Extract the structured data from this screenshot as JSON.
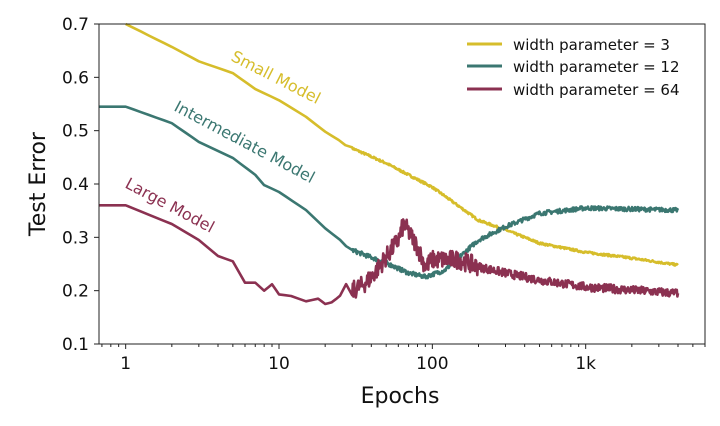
{
  "chart_data": {
    "type": "line",
    "title": "",
    "xlabel": "Epochs",
    "ylabel": "Test Error",
    "xscale": "log",
    "xlim": [
      0.67,
      6000
    ],
    "ylim": [
      0.1,
      0.7
    ],
    "xticks": [
      {
        "value": 1,
        "label": "1"
      },
      {
        "value": 10,
        "label": "10"
      },
      {
        "value": 100,
        "label": "100"
      },
      {
        "value": 1000,
        "label": "1k"
      }
    ],
    "yticks": [
      {
        "value": 0.1,
        "label": "0.1"
      },
      {
        "value": 0.2,
        "label": "0.2"
      },
      {
        "value": 0.3,
        "label": "0.3"
      },
      {
        "value": 0.4,
        "label": "0.4"
      },
      {
        "value": 0.5,
        "label": "0.5"
      },
      {
        "value": 0.6,
        "label": "0.6"
      },
      {
        "value": 0.7,
        "label": "0.7"
      }
    ],
    "grid": false,
    "legend_position": "top-right",
    "series": [
      {
        "name": "width parameter = 3",
        "annotation": "Small Model",
        "color": "#d6bd2b",
        "x": [
          1,
          2,
          3,
          5,
          7,
          10,
          15,
          20,
          30,
          50,
          100,
          200,
          300,
          500,
          1000,
          2000,
          4000
        ],
        "y": [
          0.7,
          0.657,
          0.63,
          0.608,
          0.578,
          0.557,
          0.526,
          0.498,
          0.467,
          0.439,
          0.394,
          0.332,
          0.314,
          0.289,
          0.272,
          0.261,
          0.248
        ]
      },
      {
        "name": "width parameter = 12",
        "annotation": "Intermediate Model",
        "color": "#3b7771",
        "x": [
          0.67,
          1,
          2,
          3,
          5,
          7,
          8,
          10,
          15,
          20,
          25,
          30,
          50,
          70,
          90,
          120,
          150,
          200,
          300,
          500,
          1000,
          4000
        ],
        "y": [
          0.545,
          0.545,
          0.514,
          0.479,
          0.449,
          0.417,
          0.398,
          0.385,
          0.351,
          0.317,
          0.295,
          0.276,
          0.252,
          0.233,
          0.226,
          0.238,
          0.263,
          0.295,
          0.32,
          0.345,
          0.355,
          0.351
        ]
      },
      {
        "name": "width parameter = 64",
        "annotation": "Large Model",
        "color": "#8b3151",
        "x": [
          0.67,
          1,
          2,
          3,
          4,
          5,
          6,
          7,
          8,
          9,
          10,
          12,
          15,
          18,
          20,
          22,
          25,
          30,
          35,
          40,
          50,
          60,
          65,
          80,
          90,
          100,
          150,
          200,
          300,
          500,
          1000,
          4000
        ],
        "y": [
          0.36,
          0.36,
          0.325,
          0.295,
          0.265,
          0.255,
          0.215,
          0.215,
          0.2,
          0.212,
          0.193,
          0.19,
          0.18,
          0.185,
          0.175,
          0.178,
          0.19,
          0.2,
          0.21,
          0.225,
          0.263,
          0.295,
          0.325,
          0.282,
          0.245,
          0.258,
          0.258,
          0.245,
          0.233,
          0.22,
          0.207,
          0.195
        ]
      }
    ]
  }
}
